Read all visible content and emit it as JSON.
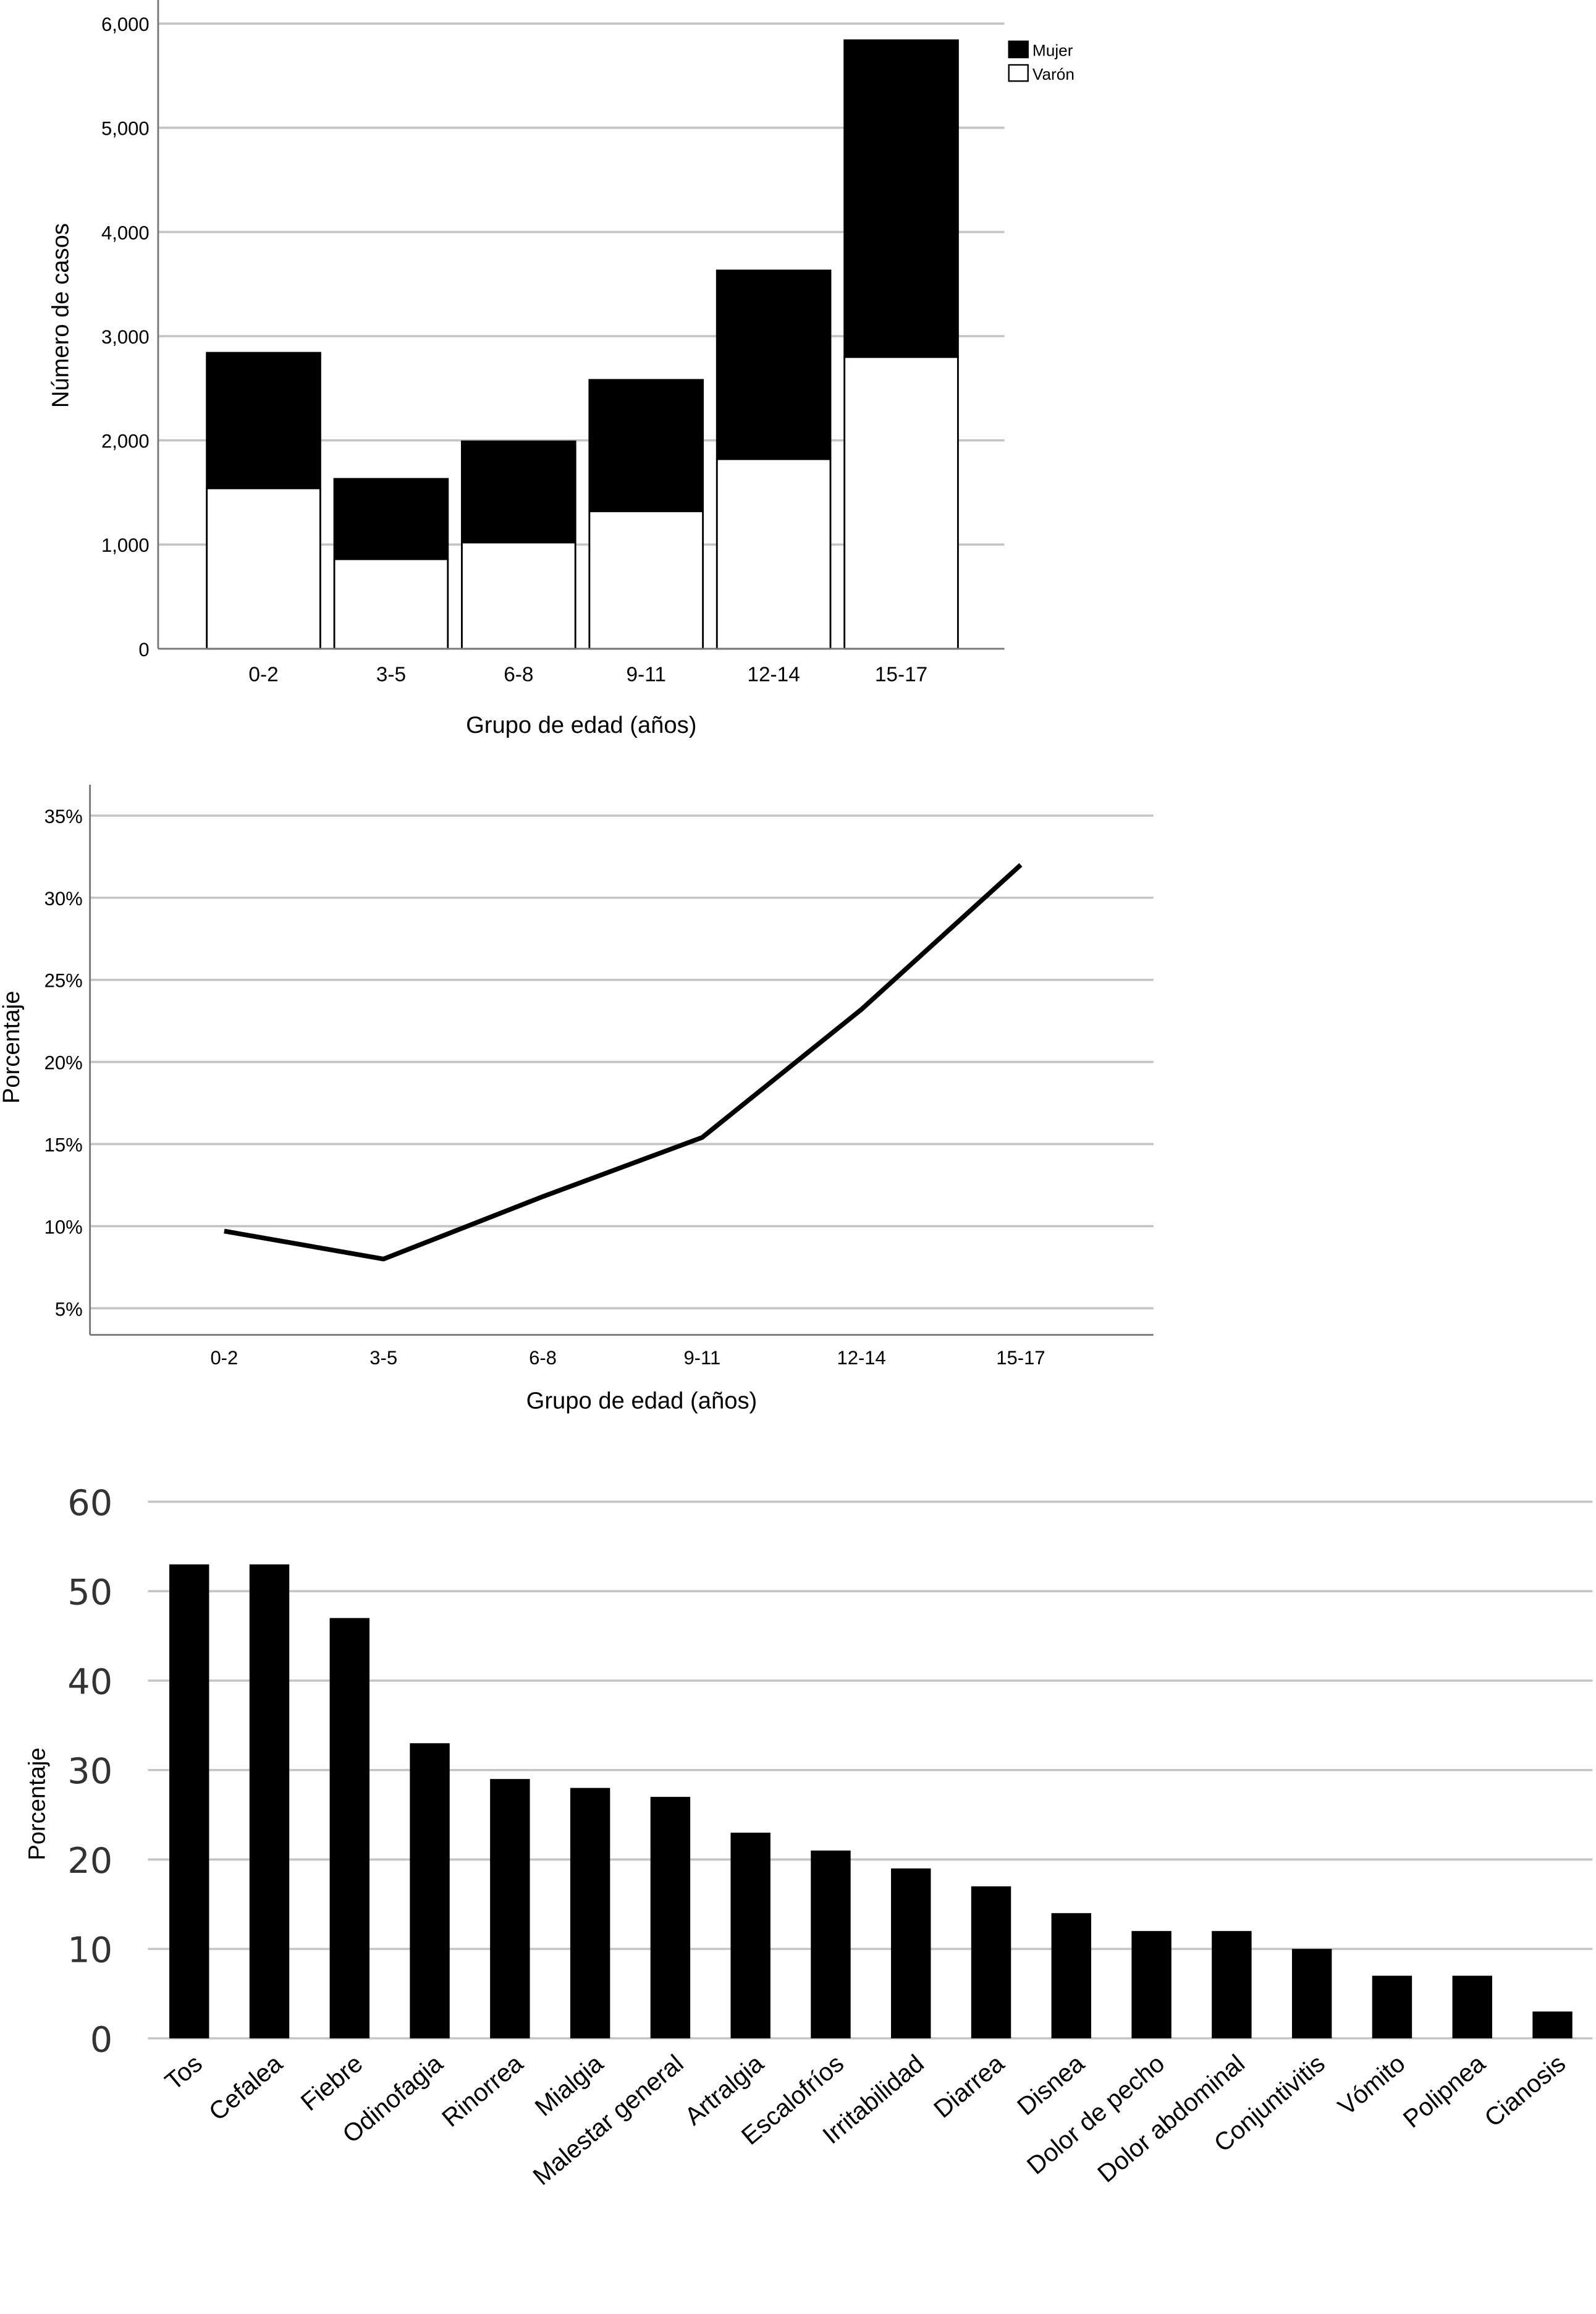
{
  "chart_data": [
    {
      "type": "bar",
      "stacked": true,
      "categories": [
        "0-2",
        "3-5",
        "6-8",
        "9-11",
        "12-14",
        "15-17"
      ],
      "series": [
        {
          "name": "Varón",
          "values": [
            1540,
            860,
            1020,
            1320,
            1820,
            2800
          ],
          "color": "#ffffff"
        },
        {
          "name": "Mujer",
          "values": [
            1300,
            770,
            970,
            1260,
            1810,
            3040
          ],
          "color": "#000000"
        }
      ],
      "xlabel": "Grupo de edad (años)",
      "ylabel": "Número de casos",
      "ylim": [
        0,
        6000
      ],
      "yticks": [
        0,
        1000,
        2000,
        3000,
        4000,
        5000,
        6000
      ],
      "ytick_labels": [
        "0",
        "1,000",
        "2,000",
        "3,000",
        "4,000",
        "5,000",
        "6,000"
      ],
      "grid": true,
      "legend_position": "top-right",
      "legend_order": [
        "Mujer",
        "Varón"
      ]
    },
    {
      "type": "line",
      "categories": [
        "0-2",
        "3-5",
        "6-8",
        "9-11",
        "12-14",
        "15-17"
      ],
      "series": [
        {
          "values": [
            9.7,
            8.0,
            11.8,
            15.4,
            23.2,
            32.0
          ],
          "color": "#000000"
        }
      ],
      "xlabel": "Grupo de edad (años)",
      "ylabel": "Porcentaje",
      "ylim": [
        4,
        36
      ],
      "yticks": [
        5,
        10,
        15,
        20,
        25,
        30,
        35
      ],
      "ytick_labels": [
        "5%",
        "10%",
        "15%",
        "20%",
        "25%",
        "30%",
        "35%"
      ],
      "grid": true
    },
    {
      "type": "bar",
      "categories": [
        "Tos",
        "Cefalea",
        "Fiebre",
        "Odinofagia",
        "Rinorrea",
        "Mialgia",
        "Malestar general",
        "Artralgia",
        "Escalofríos",
        "Irritabilidad",
        "Diarrea",
        "Disnea",
        "Dolor de pecho",
        "Dolor abdominal",
        "Conjuntivitis",
        "Vómito",
        "Polipnea",
        "Cianosis"
      ],
      "values": [
        53,
        53,
        47,
        33,
        29,
        28,
        27,
        23,
        21,
        19,
        17,
        14,
        12,
        12,
        10,
        7,
        7,
        3
      ],
      "color": "#000000",
      "xlabel": "",
      "ylabel": "Porcentaje",
      "ylim": [
        0,
        60
      ],
      "yticks": [
        0,
        10,
        20,
        30,
        40,
        50,
        60
      ],
      "ytick_labels": [
        "0",
        "10",
        "20",
        "30",
        "40",
        "50",
        "60"
      ],
      "grid": true
    }
  ]
}
